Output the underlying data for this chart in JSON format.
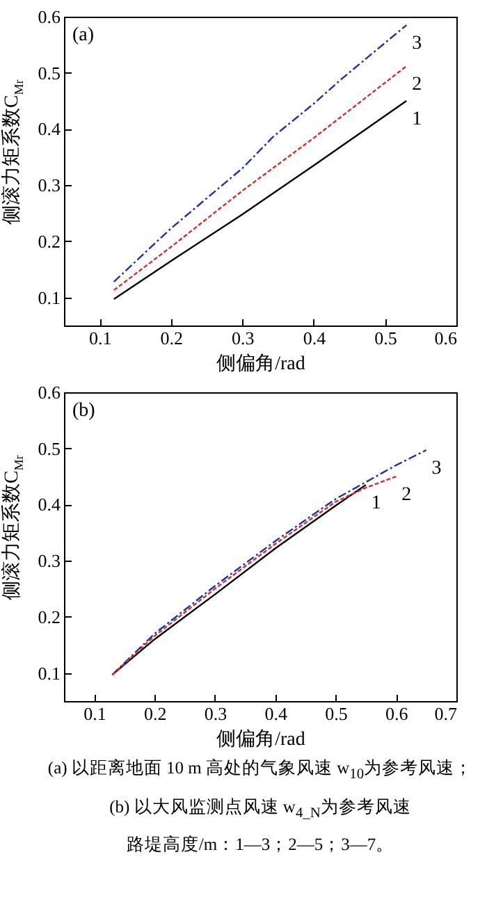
{
  "chart_data": [
    {
      "type": "line",
      "title": "(a)",
      "xlabel": "侧偏角/rad",
      "ylabel": "侧滚力矩系数C$_{Mr}$",
      "xlim": [
        0.05,
        0.6
      ],
      "xticks": [
        0.1,
        0.2,
        0.3,
        0.4,
        0.5,
        0.6
      ],
      "ylim": [
        0.05,
        0.6
      ],
      "yticks": [
        0.1,
        0.2,
        0.3,
        0.4,
        0.5,
        0.6
      ],
      "grid": false,
      "series": [
        {
          "name": "1",
          "color": "#000000",
          "line_style": "solid",
          "x": [
            0.12,
            0.2,
            0.3,
            0.4,
            0.53
          ],
          "values": [
            0.097,
            0.165,
            0.248,
            0.335,
            0.45
          ]
        },
        {
          "name": "2",
          "color": "#d03030",
          "line_style": "dashed",
          "x": [
            0.12,
            0.2,
            0.3,
            0.4,
            0.53
          ],
          "values": [
            0.113,
            0.19,
            0.29,
            0.384,
            0.512
          ]
        },
        {
          "name": "3",
          "color": "#2030a0",
          "line_style": "dashdot",
          "x": [
            0.12,
            0.2,
            0.3,
            0.343,
            0.4,
            0.438,
            0.53
          ],
          "values": [
            0.128,
            0.223,
            0.33,
            0.386,
            0.445,
            0.488,
            0.585
          ]
        }
      ]
    },
    {
      "type": "line",
      "title": "(b)",
      "xlabel": "侧偏角/rad",
      "ylabel": "侧滚力矩系数C$_{Mr}$",
      "xlim": [
        0.05,
        0.7
      ],
      "xticks": [
        0.1,
        0.2,
        0.3,
        0.4,
        0.5,
        0.6,
        0.7
      ],
      "ylim": [
        0.05,
        0.6
      ],
      "yticks": [
        0.1,
        0.2,
        0.3,
        0.4,
        0.5,
        0.6
      ],
      "grid": false,
      "series": [
        {
          "name": "1",
          "color": "#000000",
          "line_style": "solid",
          "x": [
            0.13,
            0.2,
            0.3,
            0.4,
            0.5,
            0.55
          ],
          "values": [
            0.097,
            0.16,
            0.24,
            0.322,
            0.398,
            0.435
          ]
        },
        {
          "name": "2",
          "color": "#d03030",
          "line_style": "dashed",
          "x": [
            0.13,
            0.2,
            0.3,
            0.4,
            0.5,
            0.55,
            0.6
          ],
          "values": [
            0.097,
            0.166,
            0.25,
            0.33,
            0.405,
            0.43,
            0.45
          ]
        },
        {
          "name": "3",
          "color": "#2030a0",
          "line_style": "dashdot",
          "x": [
            0.13,
            0.2,
            0.3,
            0.4,
            0.5,
            0.55,
            0.6,
            0.65
          ],
          "values": [
            0.097,
            0.17,
            0.255,
            0.335,
            0.41,
            0.44,
            0.47,
            0.497
          ]
        }
      ],
      "annotations": [
        "(a) 以距离地面 10 m 高处的气象风速 w$_{10}$为参考风速；",
        "(b) 以大风监测点风速 w$_{4_N}$为参考风速",
        "路堤高度/m：1—3；2—5；3—7。"
      ]
    }
  ]
}
